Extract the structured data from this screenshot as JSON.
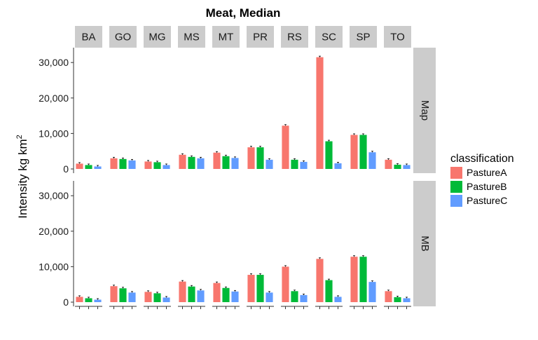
{
  "chart_data": {
    "type": "bar",
    "title": "Meat, Median",
    "xlabel": "",
    "ylabel": "Intensity kg km",
    "ylabel_superscript": "2",
    "ylim": [
      0,
      33000
    ],
    "yticks": [
      0,
      10000,
      20000,
      30000
    ],
    "ytick_labels": [
      "0",
      "10,000",
      "20,000",
      "30,000"
    ],
    "grid": false,
    "legend_position": "right",
    "legend_title": "classification",
    "columns": [
      "BA",
      "GO",
      "MG",
      "MS",
      "MT",
      "PR",
      "RS",
      "SC",
      "SP",
      "TO"
    ],
    "rows": [
      "Map",
      "MB"
    ],
    "series": [
      {
        "name": "PastureA",
        "color": "#F8766D"
      },
      {
        "name": "PastureB",
        "color": "#00BA38"
      },
      {
        "name": "PastureC",
        "color": "#619CFF"
      }
    ],
    "values": {
      "Map": {
        "BA": [
          1500,
          1100,
          700
        ],
        "GO": [
          3000,
          2800,
          2400
        ],
        "MG": [
          2100,
          1900,
          1100
        ],
        "MS": [
          4000,
          3400,
          3000
        ],
        "MT": [
          4600,
          3600,
          3100
        ],
        "PR": [
          6100,
          6100,
          2600
        ],
        "RS": [
          12200,
          2600,
          2000
        ],
        "SC": [
          31500,
          7800,
          1600
        ],
        "SP": [
          9600,
          9600,
          4700
        ],
        "TO": [
          2600,
          1200,
          1100
        ]
      },
      "MB": {
        "BA": [
          1500,
          1100,
          700
        ],
        "GO": [
          4500,
          3900,
          2700
        ],
        "MG": [
          2900,
          2500,
          1300
        ],
        "MS": [
          5800,
          4400,
          3300
        ],
        "MT": [
          5400,
          4000,
          3000
        ],
        "PR": [
          7700,
          7700,
          2700
        ],
        "RS": [
          10000,
          3100,
          2000
        ],
        "SC": [
          12200,
          6200,
          1500
        ],
        "SP": [
          12800,
          12800,
          5700
        ],
        "TO": [
          3100,
          1400,
          1100
        ]
      }
    }
  }
}
